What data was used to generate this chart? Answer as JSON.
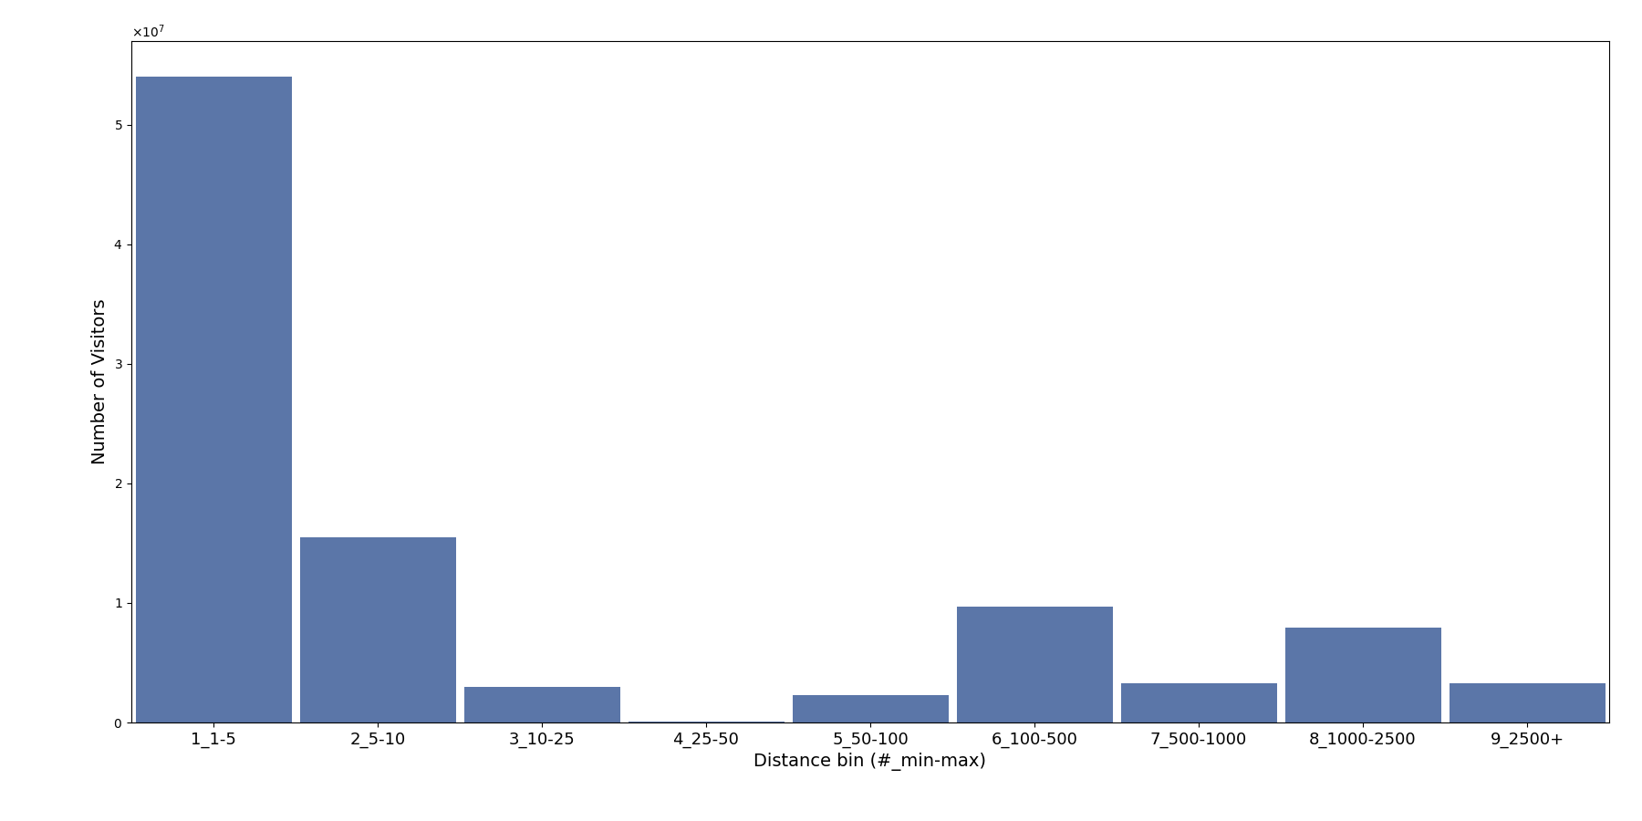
{
  "categories": [
    "1_1-5",
    "2_5-10",
    "3_10-25",
    "4_25-50",
    "5_50-100",
    "6_100-500",
    "7_500-1000",
    "8_1000-2500",
    "9_2500+"
  ],
  "values": [
    54000000,
    15500000,
    3000000,
    100000,
    2300000,
    9700000,
    3300000,
    7900000,
    3300000
  ],
  "bar_color": "#5b76a8",
  "xlabel": "Distance bin (#_min-max)",
  "ylabel": "Number of Visitors",
  "ylim": [
    0,
    57000000
  ],
  "figsize": [
    18.0,
    9.0
  ],
  "dpi": 100,
  "bar_width": 0.95
}
